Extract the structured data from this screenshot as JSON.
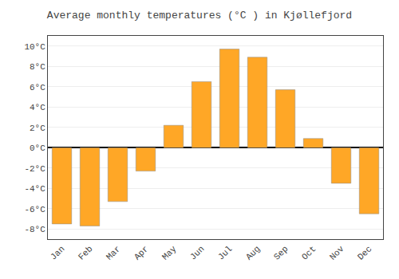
{
  "chart_data": {
    "type": "bar",
    "title": "Average monthly temperatures (°C ) in Kjøllefjord",
    "categories": [
      "Jan",
      "Feb",
      "Mar",
      "Apr",
      "May",
      "Jun",
      "Jul",
      "Aug",
      "Sep",
      "Oct",
      "Nov",
      "Dec"
    ],
    "values": [
      -7.5,
      -7.7,
      -5.3,
      -2.3,
      2.2,
      6.5,
      9.7,
      8.9,
      5.7,
      0.9,
      -3.5,
      -6.5
    ],
    "color": "#FFA726",
    "ylim": [
      -9,
      11
    ],
    "yticks": [
      {
        "value": -8,
        "label": "-8°C"
      },
      {
        "value": -6,
        "label": "-6°C"
      },
      {
        "value": -4,
        "label": "-4°C"
      },
      {
        "value": -2,
        "label": "-2°C"
      },
      {
        "value": 0,
        "label": "0°C"
      },
      {
        "value": 2,
        "label": "2°C"
      },
      {
        "value": 4,
        "label": "4°C"
      },
      {
        "value": 6,
        "label": "6°C"
      },
      {
        "value": 8,
        "label": "8°C"
      },
      {
        "value": 10,
        "label": "10°C"
      }
    ],
    "grid": true
  }
}
